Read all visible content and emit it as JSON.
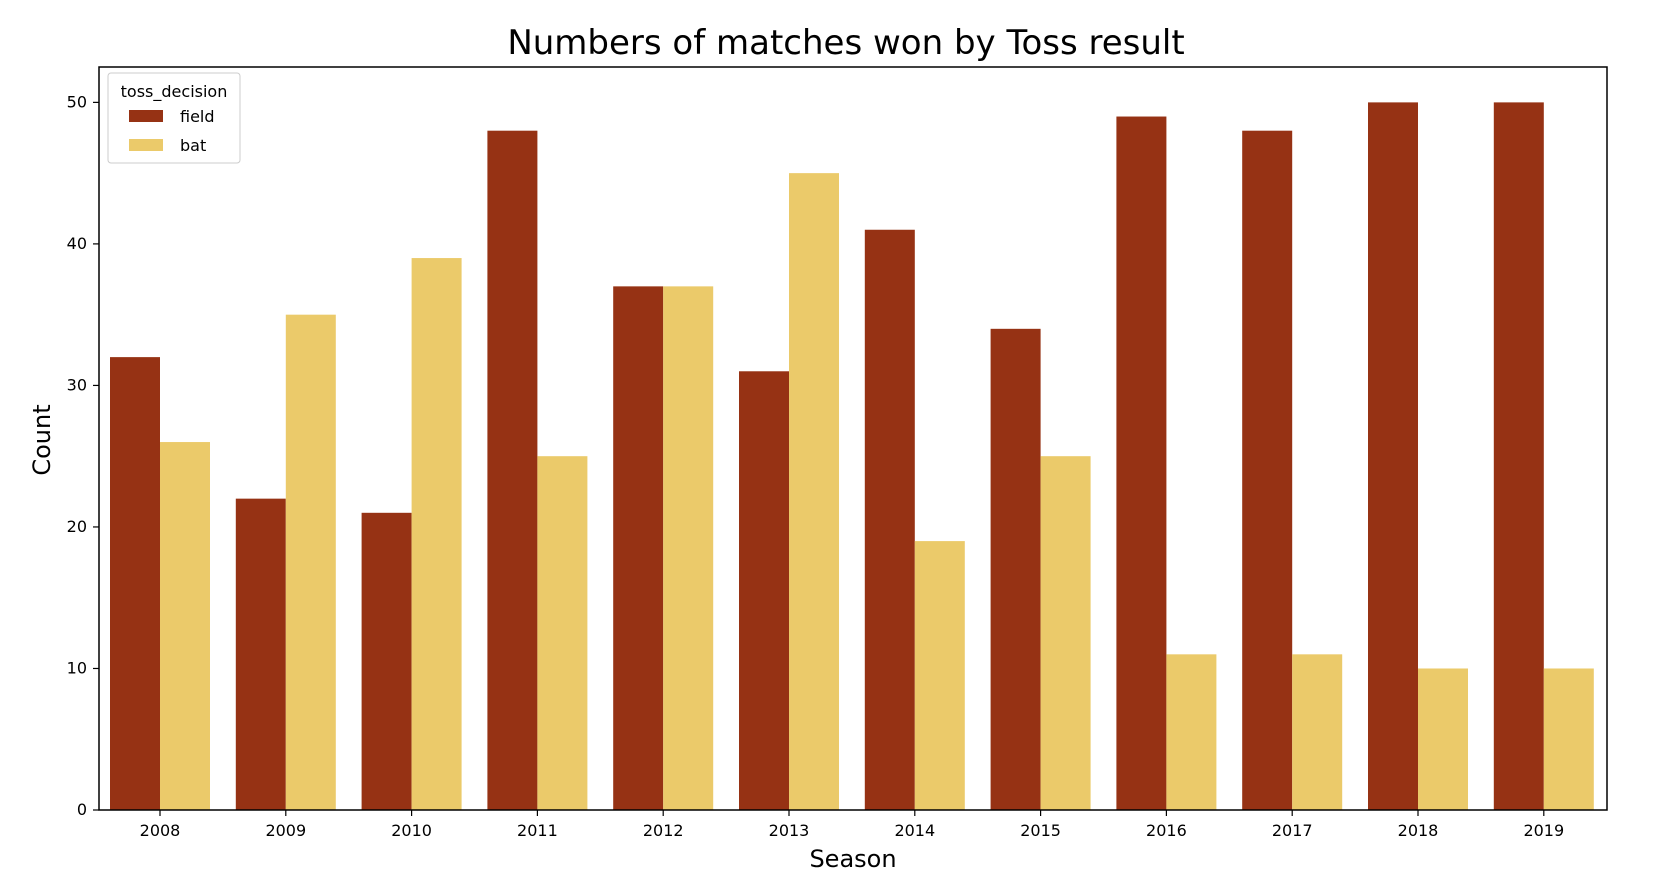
{
  "chart_data": {
    "type": "bar",
    "title": "Numbers of matches won by Toss result",
    "xlabel": "Season",
    "ylabel": "Count",
    "categories": [
      "2008",
      "2009",
      "2010",
      "2011",
      "2012",
      "2013",
      "2014",
      "2015",
      "2016",
      "2017",
      "2018",
      "2019"
    ],
    "series": [
      {
        "name": "field",
        "color": "#963214",
        "values": [
          32,
          22,
          21,
          48,
          37,
          31,
          41,
          34,
          49,
          48,
          50,
          50
        ]
      },
      {
        "name": "bat",
        "color": "#EBCA6A",
        "values": [
          26,
          35,
          39,
          25,
          37,
          45,
          19,
          25,
          11,
          11,
          10,
          10
        ]
      }
    ],
    "ylim": [
      0,
      52.5
    ],
    "yticks": [
      0,
      10,
      20,
      30,
      40,
      50
    ],
    "grid": false,
    "legend": {
      "title": "toss_decision",
      "placement": "top-left"
    }
  }
}
